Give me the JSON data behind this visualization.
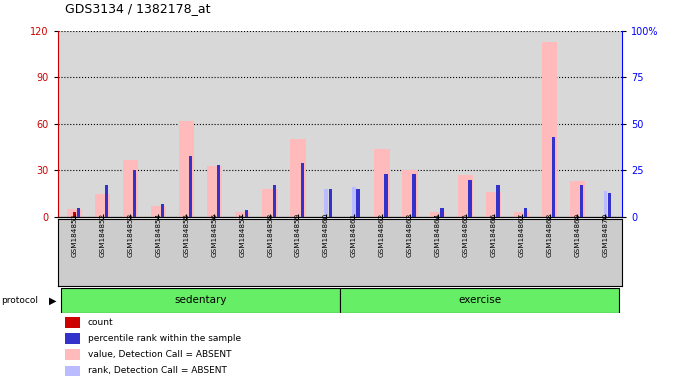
{
  "title": "GDS3134 / 1382178_at",
  "samples": [
    "GSM184851",
    "GSM184852",
    "GSM184853",
    "GSM184854",
    "GSM184855",
    "GSM184856",
    "GSM184857",
    "GSM184858",
    "GSM184859",
    "GSM184860",
    "GSM184861",
    "GSM184862",
    "GSM184863",
    "GSM184864",
    "GSM184865",
    "GSM184866",
    "GSM184867",
    "GSM184868",
    "GSM184869",
    "GSM184870"
  ],
  "count_values": [
    3,
    0,
    0,
    0,
    0,
    0,
    0,
    0,
    0,
    0,
    0,
    0,
    0,
    0,
    0,
    0,
    0,
    0,
    0,
    0
  ],
  "rank_values": [
    5,
    17,
    25,
    7,
    33,
    28,
    4,
    17,
    29,
    15,
    15,
    23,
    23,
    5,
    20,
    17,
    5,
    43,
    17,
    13
  ],
  "absent_value_values": [
    5,
    15,
    37,
    7,
    62,
    33,
    3,
    18,
    50,
    0,
    0,
    44,
    30,
    3,
    27,
    16,
    3,
    113,
    23,
    0
  ],
  "absent_rank_values": [
    0,
    0,
    0,
    0,
    0,
    0,
    0,
    0,
    0,
    15,
    16,
    0,
    0,
    0,
    0,
    0,
    0,
    0,
    0,
    14
  ],
  "protocol_groups": [
    {
      "label": "sedentary",
      "start": 0,
      "end": 9
    },
    {
      "label": "exercise",
      "start": 10,
      "end": 19
    }
  ],
  "ylim_left": [
    0,
    120
  ],
  "ylim_right": [
    0,
    100
  ],
  "yticks_left": [
    0,
    30,
    60,
    90,
    120
  ],
  "yticks_right": [
    0,
    25,
    50,
    75,
    100
  ],
  "color_count": "#cc0000",
  "color_rank": "#3333cc",
  "color_absent_value": "#ffbbbb",
  "color_absent_rank": "#bbbbff",
  "bg_plot": "#d8d8d8",
  "bg_protocol": "#66ee66",
  "bg_xlabels": "#cccccc"
}
